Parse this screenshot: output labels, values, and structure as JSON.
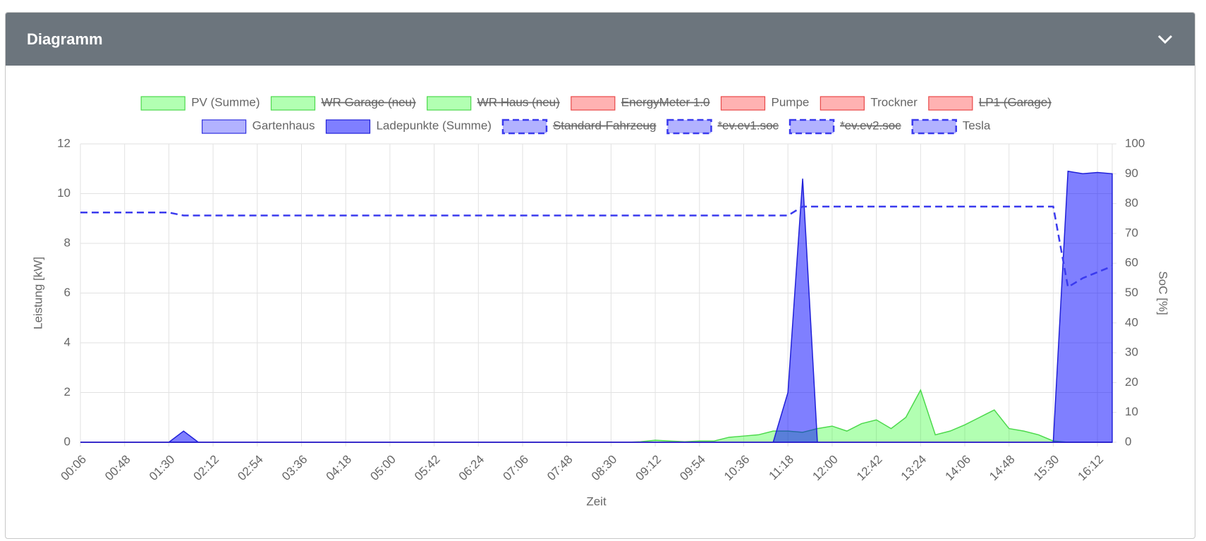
{
  "header": {
    "title": "Diagramm"
  },
  "chart_data": {
    "type": "line",
    "xlabel": "Zeit",
    "ylabel": "Leistung [kW]",
    "y2label": "SoC [%]",
    "ylim": [
      0,
      12
    ],
    "yticks": [
      0,
      2,
      4,
      6,
      8,
      10,
      12
    ],
    "y2lim": [
      0,
      100
    ],
    "y2ticks": [
      0,
      10,
      20,
      30,
      40,
      50,
      60,
      70,
      80,
      90,
      100
    ],
    "grid": true,
    "categories": [
      "00:06",
      null,
      null,
      "00:48",
      null,
      null,
      "01:30",
      null,
      null,
      "02:12",
      null,
      null,
      "02:54",
      null,
      null,
      "03:36",
      null,
      null,
      "04:18",
      null,
      null,
      "05:00",
      null,
      null,
      "05:42",
      null,
      null,
      "06:24",
      null,
      null,
      "07:06",
      null,
      null,
      "07:48",
      null,
      null,
      "08:30",
      null,
      null,
      "09:12",
      null,
      null,
      "09:54",
      null,
      null,
      "10:36",
      null,
      null,
      "11:18",
      null,
      null,
      "12:00",
      null,
      null,
      "12:42",
      null,
      null,
      "13:24",
      null,
      null,
      "14:06",
      null,
      null,
      "14:48",
      null,
      null,
      "15:30",
      null,
      null,
      "16:12",
      null
    ],
    "series": [
      {
        "name": "PV (Summe)",
        "color": "#4cd94c",
        "fill": "rgba(0,255,0,0.3)",
        "values": [
          0,
          0,
          0,
          0,
          0,
          0,
          0,
          0,
          0,
          0,
          0,
          0,
          0,
          0,
          0,
          0,
          0,
          0,
          0,
          0,
          0,
          0,
          0,
          0,
          0,
          0,
          0,
          0,
          0,
          0,
          0,
          0,
          0,
          0,
          0,
          0,
          0,
          0,
          0.02,
          0.08,
          0.05,
          0.02,
          0.05,
          0.05,
          0.2,
          0.25,
          0.3,
          0.45,
          0.45,
          0.4,
          0.55,
          0.65,
          0.45,
          0.75,
          0.9,
          0.55,
          1.0,
          2.1,
          0.3,
          0.45,
          0.7,
          1.0,
          1.3,
          0.55,
          0.45,
          0.3,
          0.05,
          0,
          0,
          0,
          0
        ]
      },
      {
        "name": "WR Garage (neu)",
        "color": "#4cd94c",
        "fill": "rgba(0,255,0,0.3)",
        "hidden": true
      },
      {
        "name": "WR Haus (neu)",
        "color": "#4cd94c",
        "fill": "rgba(0,255,0,0.3)",
        "hidden": true
      },
      {
        "name": "EnergyMeter 1.0",
        "color": "#e84848",
        "fill": "rgba(255,0,0,0.3)",
        "hidden": true
      },
      {
        "name": "Pumpe",
        "color": "#e84848",
        "fill": "rgba(255,0,0,0.3)",
        "values": [
          0,
          0,
          0,
          0,
          0,
          0,
          0,
          0,
          0,
          0,
          0,
          0,
          0,
          0,
          0,
          0,
          0,
          0,
          0,
          0,
          0,
          0,
          0,
          0,
          0,
          0,
          0,
          0,
          0,
          0,
          0,
          0,
          0,
          0,
          0,
          0,
          0,
          0,
          0,
          0,
          0,
          0,
          0,
          0,
          0,
          0,
          0,
          0,
          0,
          0,
          0,
          0,
          0,
          0,
          0,
          0,
          0,
          0,
          0,
          0,
          0,
          0,
          0,
          0,
          0,
          0,
          0,
          0,
          0,
          0,
          0
        ]
      },
      {
        "name": "Trockner",
        "color": "#e84848",
        "fill": "rgba(255,0,0,0.3)",
        "values": [
          0,
          0,
          0,
          0,
          0,
          0,
          0,
          0,
          0,
          0,
          0,
          0,
          0,
          0,
          0,
          0,
          0,
          0,
          0,
          0,
          0,
          0,
          0,
          0,
          0,
          0,
          0,
          0,
          0,
          0,
          0,
          0,
          0,
          0,
          0,
          0,
          0,
          0,
          0,
          0,
          0,
          0,
          0,
          0,
          0,
          0,
          0,
          0,
          0,
          0,
          0,
          0,
          0,
          0,
          0,
          0,
          0,
          0,
          0,
          0,
          0,
          0,
          0,
          0,
          0,
          0,
          0,
          0,
          0,
          0,
          0
        ]
      },
      {
        "name": "LP1 (Garage)",
        "color": "#e84848",
        "fill": "rgba(255,0,0,0.3)",
        "hidden": true
      },
      {
        "name": "Gartenhaus",
        "color": "#3030e0",
        "fill": "rgba(0,0,255,0.3)",
        "values": [
          0,
          0,
          0,
          0,
          0,
          0,
          0,
          0,
          0,
          0,
          0,
          0,
          0,
          0,
          0,
          0,
          0,
          0,
          0,
          0,
          0,
          0,
          0,
          0,
          0,
          0,
          0,
          0,
          0,
          0,
          0,
          0,
          0,
          0,
          0,
          0,
          0,
          0,
          0,
          0,
          0,
          0,
          0,
          0,
          0,
          0,
          0,
          0,
          0,
          0,
          0,
          0,
          0,
          0,
          0,
          0,
          0,
          0,
          0,
          0,
          0,
          0,
          0,
          0,
          0,
          0,
          0,
          0,
          0,
          0,
          0
        ]
      },
      {
        "name": "Ladepunkte (Summe)",
        "color": "#2020d8",
        "fill": "rgba(0,0,255,0.5)",
        "values": [
          0,
          0,
          0,
          0,
          0,
          0,
          0,
          0.45,
          0,
          0,
          0,
          0,
          0,
          0,
          0,
          0,
          0,
          0,
          0,
          0,
          0,
          0,
          0,
          0,
          0,
          0,
          0,
          0,
          0,
          0,
          0,
          0,
          0,
          0,
          0,
          0,
          0,
          0,
          0,
          0,
          0,
          0,
          0,
          0,
          0,
          0,
          0,
          0,
          2.0,
          10.6,
          0,
          0,
          0,
          0,
          0,
          0,
          0,
          0,
          0,
          0,
          0,
          0,
          0,
          0,
          0,
          0,
          0,
          10.9,
          10.8,
          10.85,
          10.8
        ]
      },
      {
        "name": "Standard-Fahrzeug",
        "color": "#3a3aee",
        "fill": "rgba(0,0,255,0.3)",
        "dash": true,
        "axis": "y2",
        "hidden": true
      },
      {
        "name": "*ev.ev1.soc",
        "color": "#3a3aee",
        "fill": "rgba(0,0,255,0.3)",
        "dash": true,
        "axis": "y2",
        "hidden": true
      },
      {
        "name": "*ev.ev2.soc",
        "color": "#3a3aee",
        "fill": "rgba(0,0,255,0.3)",
        "dash": true,
        "axis": "y2",
        "hidden": true
      },
      {
        "name": "Tesla",
        "color": "#3a3aee",
        "fill": "rgba(0,0,255,0.3)",
        "dash": true,
        "axis": "y2",
        "values": [
          77,
          77,
          77,
          77,
          77,
          77,
          77,
          76,
          76,
          76,
          76,
          76,
          76,
          76,
          76,
          76,
          76,
          76,
          76,
          76,
          76,
          76,
          76,
          76,
          76,
          76,
          76,
          76,
          76,
          76,
          76,
          76,
          76,
          76,
          76,
          76,
          76,
          76,
          76,
          76,
          76,
          76,
          76,
          76,
          76,
          76,
          76,
          76,
          76,
          79,
          79,
          79,
          79,
          79,
          79,
          79,
          79,
          79,
          79,
          79,
          79,
          79,
          79,
          79,
          79,
          79,
          79,
          52,
          55,
          57,
          59
        ]
      }
    ]
  }
}
